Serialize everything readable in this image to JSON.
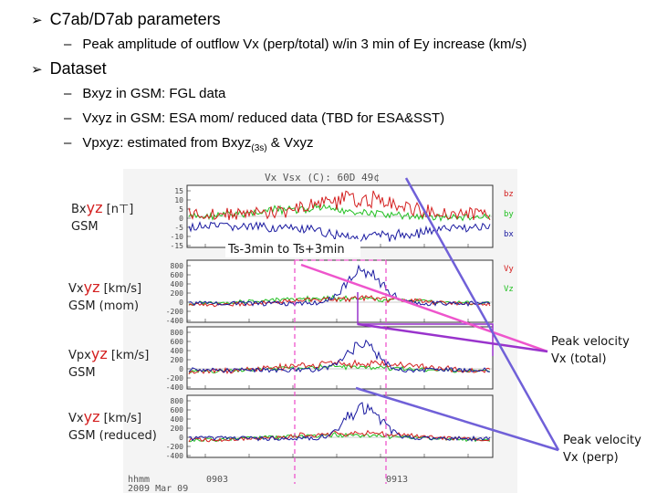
{
  "slide": {
    "bullet1": "C7ab/D7ab parameters",
    "bullet1_sub": "Peak amplitude of outflow Vx (perp/total) w/in 3 min of Ey increase (km/s)",
    "bullet2": "Dataset",
    "dataset": [
      "Bxyz in GSM: FGL data",
      "Vxyz in GSM: ESA mom/ reduced data (TBD for ESA&SST)"
    ],
    "dataset3_pre": "Vpxyz: estimated from Bxyz",
    "dataset3_sub": "(3s)",
    "dataset3_post": " & Vxyz",
    "bullet_glyph": "➢",
    "dash_glyph": "–"
  },
  "plot": {
    "title": "Vx  Vsx (C):   60D   49¢",
    "panels": [
      {
        "name_pre": "Bx",
        "name_red": "yz",
        "unit": " [n⊤]",
        "frame": "GSM",
        "ticks": [
          "15",
          "10",
          "5",
          "0",
          "-5",
          "-10",
          "-15"
        ],
        "legend": [
          "bz",
          "by",
          "bx"
        ]
      },
      {
        "name_pre": "Vx",
        "name_red": "yz",
        "unit": " [km/s]",
        "frame": "GSM (mom)",
        "ticks": [
          "800",
          "600",
          "400",
          "200",
          "0",
          "-200",
          "-400"
        ],
        "legend": [
          "Vy",
          "Vz"
        ]
      },
      {
        "name_pre": "Vpx",
        "name_red": "yz",
        "unit": " [km/s]",
        "frame": "GSM",
        "ticks": [
          "800",
          "600",
          "400",
          "200",
          "0",
          "-200",
          "-400"
        ],
        "legend": []
      },
      {
        "name_pre": "Vx",
        "name_red": "yz",
        "unit": " [km/s]",
        "frame": "GSM (reduced)",
        "ticks": [
          "800",
          "600",
          "400",
          "200",
          "0",
          "-200",
          "-400"
        ],
        "legend": []
      }
    ],
    "window_label": "Ts-3min to Ts+3min",
    "x_ticks": [
      "0903",
      "0913"
    ],
    "footer_line1": "hhmm",
    "footer_line2": "2009 Mar 09"
  },
  "annotations": {
    "total_line1": "Peak velocity",
    "total_line2": "Vx (total)",
    "perp_line1": "Peak velocity",
    "perp_line2": "Vx (perp)"
  },
  "colors": {
    "red": "#d42020",
    "green": "#22c022",
    "blue": "#1a1aa0",
    "pink": "#ee55cc",
    "purple": "#7060d8",
    "violet": "#9933cc"
  }
}
